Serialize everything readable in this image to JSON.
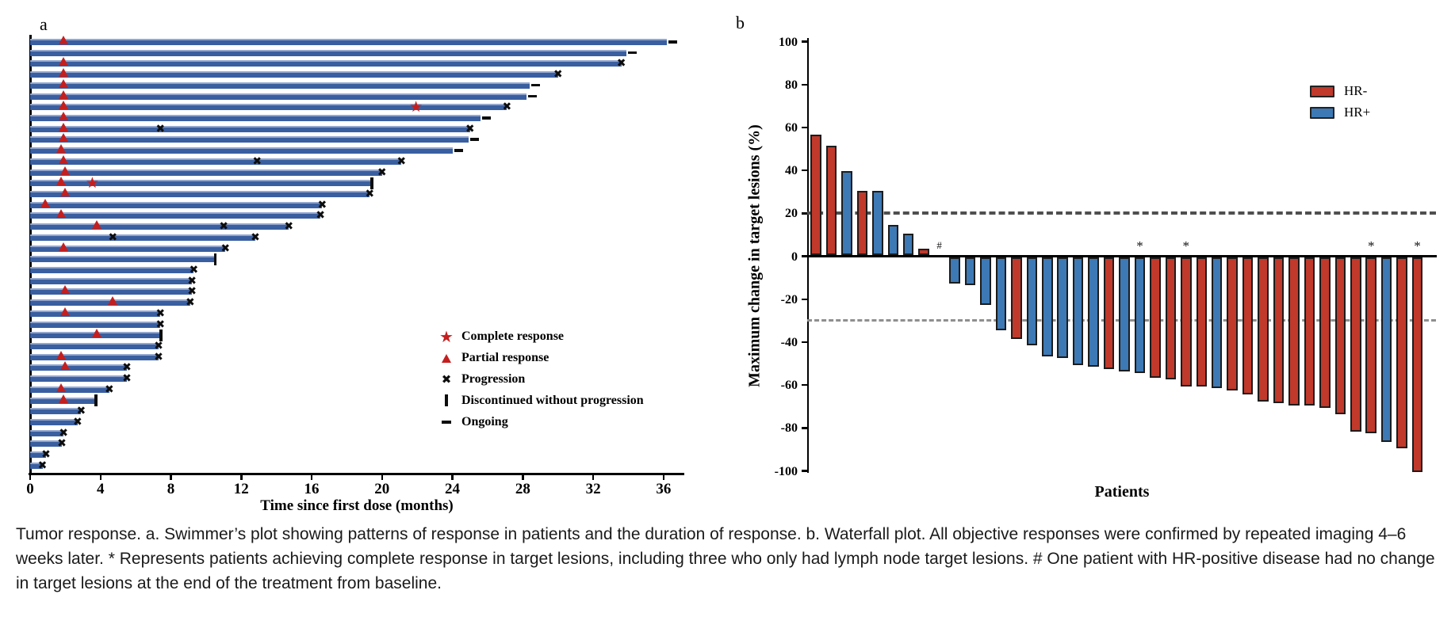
{
  "figure": {
    "caption": "Tumor response. a. Swimmer’s plot showing patterns of response in patients and the duration of response. b. Waterfall plot. All objective responses were confirmed by repeated imaging 4–6 weeks later. * Represents patients achieving complete response in target lesions, including three who only had lymph node target lesions. # One patient with HR-positive disease had no change in target lesions at the end of the treatment from baseline."
  },
  "chart_data": [
    {
      "type": "swimmer",
      "panel_label": "a",
      "xlabel": "Time since first dose (months)",
      "xlim": [
        0,
        37
      ],
      "x_ticks": [
        0,
        4,
        8,
        12,
        16,
        20,
        24,
        28,
        32,
        36
      ],
      "bar_color": "#3a5fa0",
      "bar_highlight": "#93a7cf",
      "marker_color": "#c41f1f",
      "legend": [
        {
          "marker": "star",
          "label": "Complete response"
        },
        {
          "marker": "triangle",
          "label": "Partial response"
        },
        {
          "marker": "x",
          "label": "Progression"
        },
        {
          "marker": "bar",
          "label": "Discontinued without progression"
        },
        {
          "marker": "dash",
          "label": "Ongoing"
        }
      ],
      "patients": [
        {
          "duration": 36.2,
          "end": "ongoing",
          "markers": [
            {
              "type": "triangle",
              "month": 1.9
            }
          ]
        },
        {
          "duration": 33.9,
          "end": "ongoing",
          "markers": []
        },
        {
          "duration": 33.6,
          "end": "progression",
          "markers": [
            {
              "type": "triangle",
              "month": 1.9
            }
          ]
        },
        {
          "duration": 30.0,
          "end": "progression",
          "markers": [
            {
              "type": "triangle",
              "month": 1.9
            }
          ]
        },
        {
          "duration": 28.4,
          "end": "ongoing",
          "markers": [
            {
              "type": "triangle",
              "month": 1.9
            }
          ]
        },
        {
          "duration": 28.2,
          "end": "ongoing",
          "markers": [
            {
              "type": "triangle",
              "month": 1.9
            }
          ]
        },
        {
          "duration": 27.1,
          "end": "progression",
          "markers": [
            {
              "type": "triangle",
              "month": 1.9
            },
            {
              "type": "star",
              "month": 22.0
            }
          ]
        },
        {
          "duration": 25.6,
          "end": "ongoing",
          "markers": [
            {
              "type": "triangle",
              "month": 1.9
            }
          ]
        },
        {
          "duration": 25.0,
          "end": "progression",
          "markers": [
            {
              "type": "triangle",
              "month": 1.9
            },
            {
              "type": "x",
              "month": 7.4
            }
          ]
        },
        {
          "duration": 24.9,
          "end": "ongoing",
          "markers": [
            {
              "type": "triangle",
              "month": 1.9
            }
          ]
        },
        {
          "duration": 24.0,
          "end": "ongoing",
          "markers": [
            {
              "type": "triangle",
              "month": 1.8
            }
          ]
        },
        {
          "duration": 21.1,
          "end": "progression",
          "markers": [
            {
              "type": "triangle",
              "month": 1.9
            },
            {
              "type": "x",
              "month": 12.9
            }
          ]
        },
        {
          "duration": 20.0,
          "end": "progression",
          "markers": [
            {
              "type": "triangle",
              "month": 2.0
            }
          ]
        },
        {
          "duration": 19.4,
          "end": "discontinued",
          "markers": [
            {
              "type": "triangle",
              "month": 1.8
            },
            {
              "type": "star",
              "month": 3.6
            }
          ]
        },
        {
          "duration": 19.3,
          "end": "progression",
          "markers": [
            {
              "type": "triangle",
              "month": 2.0
            }
          ]
        },
        {
          "duration": 16.6,
          "end": "progression",
          "markers": [
            {
              "type": "triangle",
              "month": 0.9
            }
          ]
        },
        {
          "duration": 16.5,
          "end": "progression",
          "markers": [
            {
              "type": "triangle",
              "month": 1.8
            }
          ]
        },
        {
          "duration": 14.7,
          "end": "progression",
          "markers": [
            {
              "type": "triangle",
              "month": 3.8
            },
            {
              "type": "x",
              "month": 11.0
            }
          ]
        },
        {
          "duration": 12.8,
          "end": "progression",
          "markers": [
            {
              "type": "x",
              "month": 4.7
            }
          ]
        },
        {
          "duration": 11.1,
          "end": "progression",
          "markers": [
            {
              "type": "triangle",
              "month": 1.9
            }
          ]
        },
        {
          "duration": 10.5,
          "end": "discontinued",
          "markers": []
        },
        {
          "duration": 9.3,
          "end": "progression",
          "markers": []
        },
        {
          "duration": 9.2,
          "end": "progression",
          "markers": []
        },
        {
          "duration": 9.2,
          "end": "progression",
          "markers": [
            {
              "type": "triangle",
              "month": 2.0
            }
          ]
        },
        {
          "duration": 9.1,
          "end": "progression",
          "markers": [
            {
              "type": "triangle",
              "month": 4.7
            }
          ]
        },
        {
          "duration": 7.4,
          "end": "progression",
          "markers": [
            {
              "type": "triangle",
              "month": 2.0
            }
          ]
        },
        {
          "duration": 7.4,
          "end": "progression",
          "markers": []
        },
        {
          "duration": 7.4,
          "end": "discontinued",
          "markers": [
            {
              "type": "triangle",
              "month": 3.8
            }
          ]
        },
        {
          "duration": 7.3,
          "end": "progression",
          "markers": []
        },
        {
          "duration": 7.3,
          "end": "progression",
          "markers": [
            {
              "type": "triangle",
              "month": 1.8
            }
          ]
        },
        {
          "duration": 5.5,
          "end": "progression",
          "markers": [
            {
              "type": "triangle",
              "month": 2.0
            }
          ]
        },
        {
          "duration": 5.5,
          "end": "progression",
          "markers": []
        },
        {
          "duration": 4.5,
          "end": "progression",
          "markers": [
            {
              "type": "triangle",
              "month": 1.8
            }
          ]
        },
        {
          "duration": 3.7,
          "end": "discontinued",
          "markers": [
            {
              "type": "triangle",
              "month": 1.9
            }
          ]
        },
        {
          "duration": 2.9,
          "end": "progression",
          "markers": []
        },
        {
          "duration": 2.7,
          "end": "progression",
          "markers": []
        },
        {
          "duration": 1.9,
          "end": "progression",
          "markers": []
        },
        {
          "duration": 1.8,
          "end": "progression",
          "markers": []
        },
        {
          "duration": 0.9,
          "end": "progression",
          "markers": []
        },
        {
          "duration": 0.7,
          "end": "progression",
          "markers": []
        }
      ]
    },
    {
      "type": "bar",
      "panel_label": "b",
      "ylabel": "Maximum change in target lesions (%)",
      "xlabel": "Patients",
      "ylim": [
        -100,
        100
      ],
      "y_ticks": [
        100,
        80,
        60,
        40,
        20,
        0,
        -20,
        -40,
        -60,
        -80,
        -100
      ],
      "ref_lines": [
        20,
        -30
      ],
      "legend": [
        {
          "label": "HR-",
          "color": "#c0392b"
        },
        {
          "label": "HR+",
          "color": "#3d79b4"
        }
      ],
      "bars": [
        {
          "value": 56,
          "group": "HR-"
        },
        {
          "value": 51,
          "group": "HR-"
        },
        {
          "value": 39,
          "group": "HR+"
        },
        {
          "value": 30,
          "group": "HR-"
        },
        {
          "value": 30,
          "group": "HR+"
        },
        {
          "value": 14,
          "group": "HR+"
        },
        {
          "value": 10,
          "group": "HR+"
        },
        {
          "value": 3,
          "group": "HR-"
        },
        {
          "value": 0,
          "group": "HR+",
          "annotation": "#"
        },
        {
          "value": -12,
          "group": "HR+"
        },
        {
          "value": -13,
          "group": "HR+"
        },
        {
          "value": -22,
          "group": "HR+"
        },
        {
          "value": -34,
          "group": "HR+"
        },
        {
          "value": -38,
          "group": "HR-"
        },
        {
          "value": -41,
          "group": "HR+"
        },
        {
          "value": -46,
          "group": "HR+"
        },
        {
          "value": -47,
          "group": "HR+"
        },
        {
          "value": -50,
          "group": "HR+"
        },
        {
          "value": -51,
          "group": "HR+"
        },
        {
          "value": -52,
          "group": "HR-"
        },
        {
          "value": -53,
          "group": "HR+"
        },
        {
          "value": -54,
          "group": "HR+",
          "annotation": "*"
        },
        {
          "value": -56,
          "group": "HR-"
        },
        {
          "value": -57,
          "group": "HR-"
        },
        {
          "value": -60,
          "group": "HR-",
          "annotation": "*"
        },
        {
          "value": -60,
          "group": "HR-"
        },
        {
          "value": -61,
          "group": "HR+"
        },
        {
          "value": -62,
          "group": "HR-"
        },
        {
          "value": -64,
          "group": "HR-"
        },
        {
          "value": -67,
          "group": "HR-"
        },
        {
          "value": -68,
          "group": "HR-"
        },
        {
          "value": -69,
          "group": "HR-"
        },
        {
          "value": -69,
          "group": "HR-"
        },
        {
          "value": -70,
          "group": "HR-"
        },
        {
          "value": -73,
          "group": "HR-"
        },
        {
          "value": -81,
          "group": "HR-"
        },
        {
          "value": -82,
          "group": "HR-",
          "annotation": "*"
        },
        {
          "value": -86,
          "group": "HR+"
        },
        {
          "value": -89,
          "group": "HR-"
        },
        {
          "value": -100,
          "group": "HR-",
          "annotation": "*"
        }
      ]
    }
  ]
}
